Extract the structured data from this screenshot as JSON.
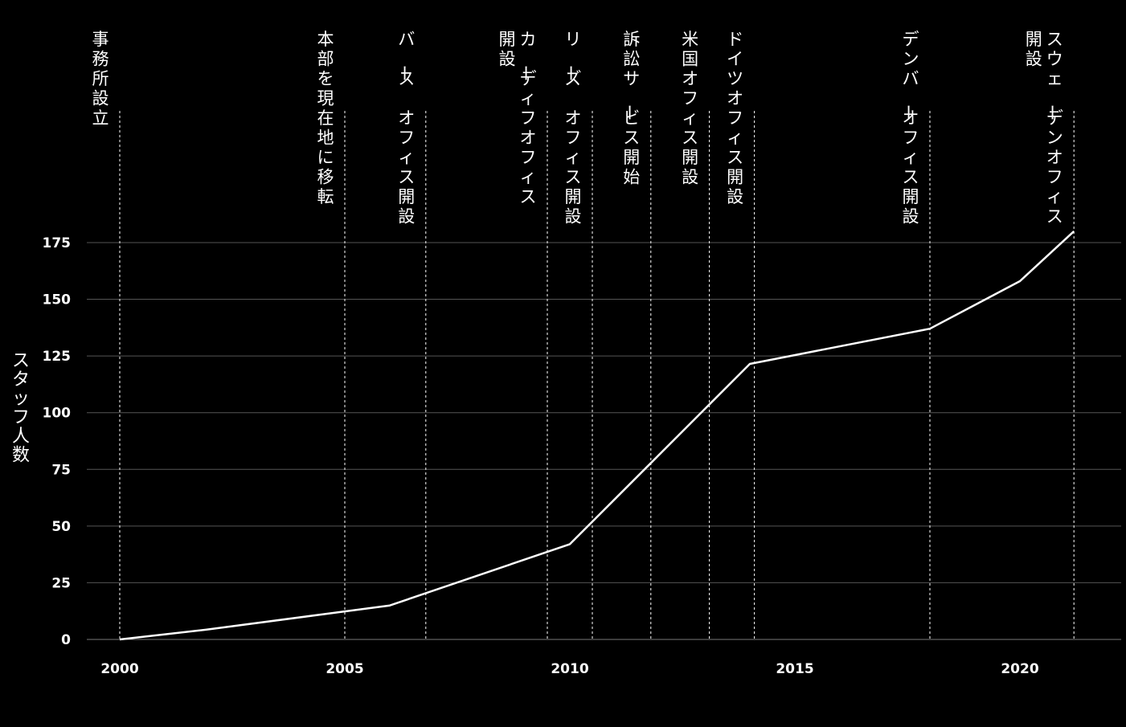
{
  "chart_data": {
    "type": "line",
    "title": "",
    "xlabel": "",
    "ylabel": "スタッフ人数",
    "xlim": [
      2000,
      2022
    ],
    "ylim": [
      0,
      180
    ],
    "x_ticks": [
      2000,
      2005,
      2010,
      2015,
      2020
    ],
    "y_ticks": [
      0,
      25,
      50,
      75,
      100,
      125,
      150,
      175
    ],
    "grid": "horizontal",
    "series": [
      {
        "x": [
          2000,
          2002,
          2006,
          2010,
          2014,
          2018,
          2020,
          2021.2
        ],
        "values": [
          0,
          4.5,
          15,
          42,
          121.5,
          137,
          158,
          180
        ]
      }
    ],
    "annotations": [
      {
        "x": 2000,
        "label_lines": [
          "事務所設立"
        ]
      },
      {
        "x": 2005,
        "label_lines": [
          "本部を現在地に移転"
        ]
      },
      {
        "x": 2006.8,
        "label_lines": [
          "バース オフィス開設"
        ]
      },
      {
        "x": 2009.5,
        "label_lines": [
          "カーディフオフィス",
          "開設"
        ]
      },
      {
        "x": 2010.5,
        "label_lines": [
          "リーズ オフィス開設"
        ]
      },
      {
        "x": 2011.8,
        "label_lines": [
          "訴訟サービス開始"
        ]
      },
      {
        "x": 2013.1,
        "label_lines": [
          "米国オフィス開設"
        ]
      },
      {
        "x": 2014.1,
        "label_lines": [
          "ドイツオフィス開設"
        ]
      },
      {
        "x": 2018,
        "label_lines": [
          "デンバーオフィス開設"
        ]
      },
      {
        "x": 2021.2,
        "label_lines": [
          "スウェーデンオフィス",
          "開設"
        ]
      }
    ],
    "colors": {
      "background": "#000000",
      "line": "#ffffff",
      "grid": "#555555",
      "text": "#ffffff"
    }
  }
}
